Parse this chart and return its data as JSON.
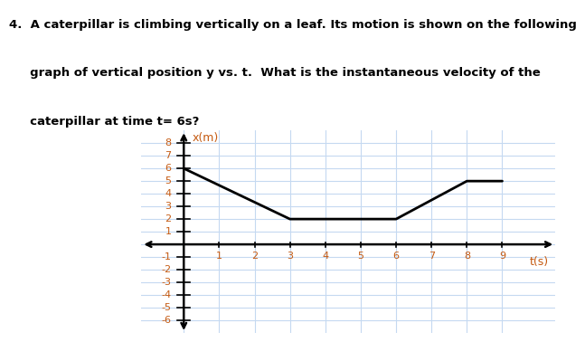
{
  "x_label": "t(s)",
  "y_label": "x(m)",
  "x_data": [
    0,
    3,
    6,
    8,
    9
  ],
  "y_data": [
    6,
    2,
    2,
    5,
    5
  ],
  "line_color": "#000000",
  "line_width": 2.0,
  "grid_color": "#c5d9f1",
  "background_color": "#ffffff",
  "xlim": [
    -1.2,
    10.5
  ],
  "ylim": [
    -7.0,
    9.0
  ],
  "xticks": [
    1,
    2,
    3,
    4,
    5,
    6,
    7,
    8,
    9
  ],
  "yticks": [
    -6,
    -5,
    -4,
    -3,
    -2,
    -1,
    1,
    2,
    3,
    4,
    5,
    6,
    7,
    8
  ],
  "tick_label_color": "#c55a11",
  "axis_label_color": "#c55a11",
  "text_line1": "4.  A caterpillar is climbing vertically on a leaf. Its motion is shown on the following",
  "text_line2": "     graph of vertical position y vs. t.  What is the instantaneous velocity of the",
  "text_line3": "     caterpillar at time t= 6s?"
}
